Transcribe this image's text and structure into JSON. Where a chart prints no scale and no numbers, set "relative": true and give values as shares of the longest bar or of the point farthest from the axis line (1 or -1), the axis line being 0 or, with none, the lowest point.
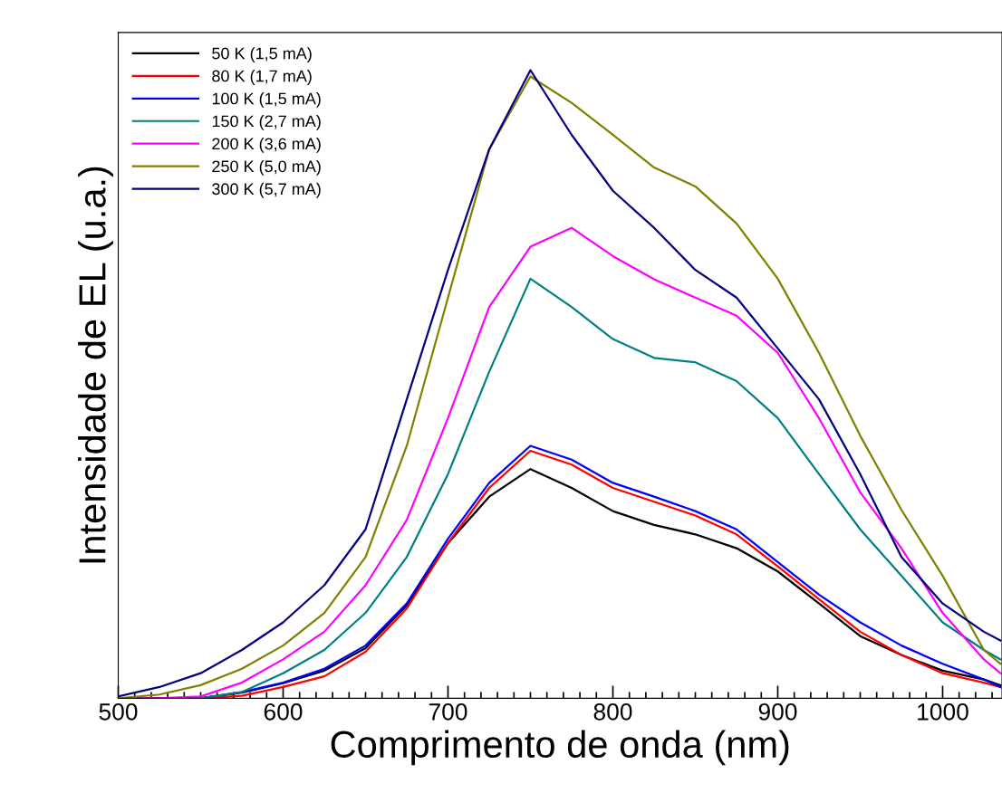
{
  "chart_data": {
    "type": "line",
    "xlabel": "Comprimento de onda (nm)",
    "ylabel": "Intensidade de EL (u.a.)",
    "relative": true,
    "x": [
      500,
      525,
      550,
      575,
      600,
      625,
      650,
      675,
      700,
      725,
      750,
      775,
      800,
      825,
      850,
      875,
      900,
      925,
      950,
      975,
      1000,
      1025,
      1035
    ],
    "xlim": [
      500,
      1036
    ],
    "xticks": [
      500,
      {
        "value": 510,
        "label": null
      },
      {
        "value": 520,
        "label": null
      },
      {
        "value": 530,
        "label": null
      },
      {
        "value": 540,
        "label": null
      },
      {
        "value": 550,
        "label": null
      },
      {
        "value": 560,
        "label": null
      },
      {
        "value": 570,
        "label": null
      },
      {
        "value": 580,
        "label": null
      },
      {
        "value": 590,
        "label": null
      },
      600,
      {
        "value": 610,
        "label": null
      },
      {
        "value": 620,
        "label": null
      },
      {
        "value": 630,
        "label": null
      },
      {
        "value": 640,
        "label": null
      },
      {
        "value": 650,
        "label": null
      },
      {
        "value": 660,
        "label": null
      },
      {
        "value": 670,
        "label": null
      },
      {
        "value": 680,
        "label": null
      },
      {
        "value": 690,
        "label": null
      },
      700,
      {
        "value": 710,
        "label": null
      },
      {
        "value": 720,
        "label": null
      },
      {
        "value": 730,
        "label": null
      },
      {
        "value": 740,
        "label": null
      },
      {
        "value": 750,
        "label": null
      },
      {
        "value": 760,
        "label": null
      },
      {
        "value": 770,
        "label": null
      },
      {
        "value": 780,
        "label": null
      },
      {
        "value": 790,
        "label": null
      },
      800,
      {
        "value": 810,
        "label": null
      },
      {
        "value": 820,
        "label": null
      },
      {
        "value": 830,
        "label": null
      },
      {
        "value": 840,
        "label": null
      },
      {
        "value": 850,
        "label": null
      },
      {
        "value": 860,
        "label": null
      },
      {
        "value": 870,
        "label": null
      },
      {
        "value": 880,
        "label": null
      },
      {
        "value": 890,
        "label": null
      },
      900,
      {
        "value": 910,
        "label": null
      },
      {
        "value": 920,
        "label": null
      },
      {
        "value": 930,
        "label": null
      },
      {
        "value": 940,
        "label": null
      },
      {
        "value": 950,
        "label": null
      },
      {
        "value": 960,
        "label": null
      },
      {
        "value": 970,
        "label": null
      },
      {
        "value": 980,
        "label": null
      },
      {
        "value": 990,
        "label": null
      },
      1000,
      {
        "value": 1010,
        "label": null
      },
      {
        "value": 1020,
        "label": null
      },
      {
        "value": 1030,
        "label": null
      }
    ],
    "legend": "top left",
    "grid": false,
    "marker": "none",
    "line_style": "solid",
    "series": [
      {
        "name": "50 K (1,5 mA)",
        "color": "#000000",
        "values": [
          0,
          0,
          0,
          0.009,
          0.024,
          0.044,
          0.08,
          0.148,
          0.247,
          0.321,
          0.365,
          0.335,
          0.298,
          0.276,
          0.261,
          0.239,
          0.202,
          0.151,
          0.099,
          0.069,
          0.044,
          0.03,
          0.021
        ]
      },
      {
        "name": "80 K (1,7 mA)",
        "color": "#ff0000",
        "values": [
          0,
          0,
          0,
          0.004,
          0.018,
          0.035,
          0.074,
          0.143,
          0.247,
          0.335,
          0.394,
          0.372,
          0.335,
          0.313,
          0.291,
          0.261,
          0.21,
          0.158,
          0.106,
          0.069,
          0.04,
          0.025,
          0.018
        ]
      },
      {
        "name": "100 K (1,5 mA)",
        "color": "#0000ff",
        "values": [
          null,
          null,
          0,
          0.01,
          0.025,
          0.047,
          0.084,
          0.151,
          0.254,
          0.343,
          0.402,
          0.38,
          0.343,
          0.321,
          0.298,
          0.269,
          0.217,
          0.165,
          0.121,
          0.084,
          0.055,
          0.03,
          0.018
        ]
      },
      {
        "name": "150 K (2,7 mA)",
        "color": "#008080",
        "values": [
          0,
          0,
          0,
          0.01,
          0.04,
          0.077,
          0.136,
          0.225,
          0.357,
          0.52,
          0.668,
          0.623,
          0.572,
          0.542,
          0.535,
          0.505,
          0.446,
          0.357,
          0.269,
          0.195,
          0.121,
          0.077,
          0.062
        ]
      },
      {
        "name": "200 K (3,6 mA)",
        "color": "#ff00ff",
        "values": [
          0,
          0,
          0.003,
          0.025,
          0.062,
          0.106,
          0.18,
          0.284,
          0.446,
          0.623,
          0.719,
          0.749,
          0.704,
          0.667,
          0.638,
          0.609,
          0.55,
          0.446,
          0.328,
          0.239,
          0.136,
          0.062,
          0.04
        ]
      },
      {
        "name": "250 K (5,0 mA)",
        "color": "#808000",
        "values": [
          0,
          0.006,
          0.021,
          0.047,
          0.084,
          0.136,
          0.225,
          0.402,
          0.638,
          0.874,
          0.99,
          0.948,
          0.897,
          0.845,
          0.815,
          0.756,
          0.668,
          0.55,
          0.418,
          0.3,
          0.195,
          0.077,
          0.055
        ]
      },
      {
        "name": "300 K (5,7 mA)",
        "color": "#000080",
        "values": [
          0.003,
          0.018,
          0.04,
          0.077,
          0.121,
          0.18,
          0.269,
          0.476,
          0.682,
          0.874,
          1.0,
          0.897,
          0.808,
          0.749,
          0.682,
          0.638,
          0.557,
          0.476,
          0.357,
          0.225,
          0.151,
          0.106,
          0.092
        ]
      }
    ]
  }
}
